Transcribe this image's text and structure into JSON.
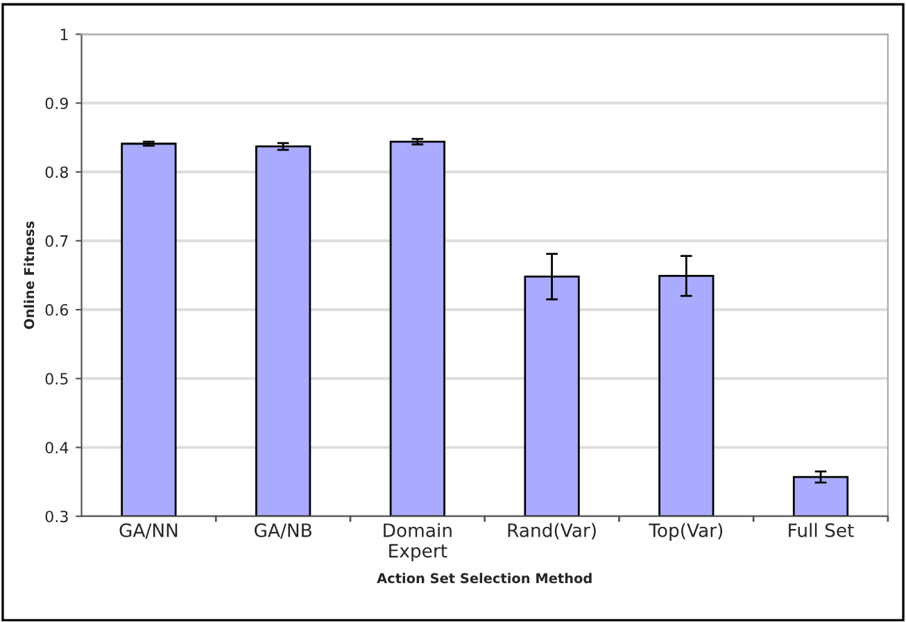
{
  "chart_data": {
    "type": "bar",
    "xlabel": "Action Set Selection Method",
    "ylabel": "Online Fitness",
    "categories": [
      "GA/NN",
      "GA/NB",
      "Domain\nExpert",
      "Rand(Var)",
      "Top(Var)",
      "Full Set"
    ],
    "values": [
      0.841,
      0.837,
      0.844,
      0.648,
      0.649,
      0.357
    ],
    "errors": [
      0.003,
      0.005,
      0.004,
      0.033,
      0.029,
      0.008
    ],
    "color": "#aaaaff",
    "ylim": [
      0.3,
      1
    ],
    "yticks": [
      0.3,
      0.4,
      0.5,
      0.6,
      0.7,
      0.8,
      0.9,
      1
    ],
    "grid": "y",
    "legend": false
  }
}
